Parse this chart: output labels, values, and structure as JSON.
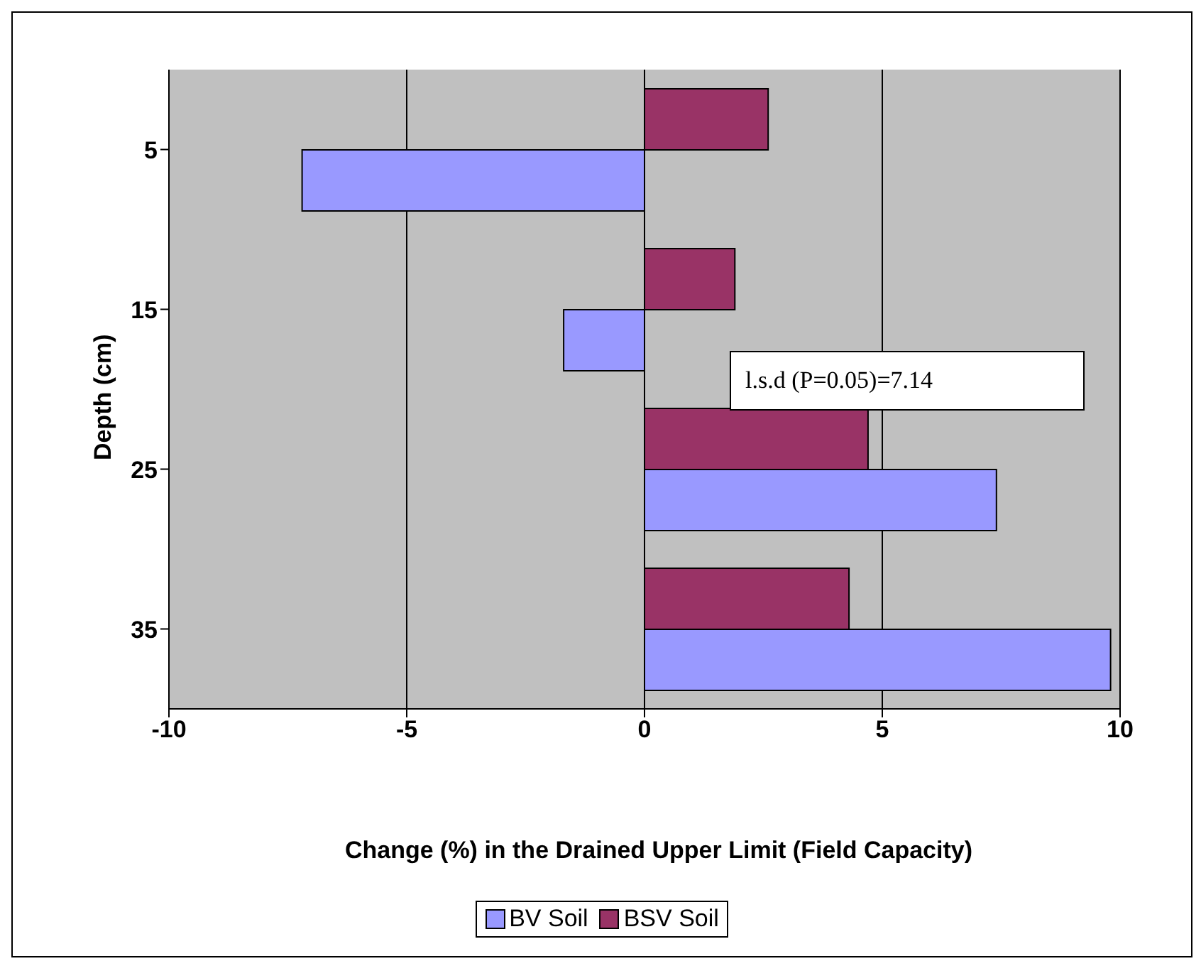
{
  "chart_data": {
    "type": "bar",
    "orientation": "horizontal",
    "xlabel": "Change (%) in the Drained Upper Limit (Field Capacity)",
    "ylabel": "Depth (cm)",
    "categories": [
      "5",
      "15",
      "25",
      "35"
    ],
    "series": [
      {
        "name": "BV Soil",
        "color": "#9999ff",
        "values": [
          -7.2,
          -1.7,
          7.4,
          9.8
        ]
      },
      {
        "name": "BSV Soil",
        "color": "#993366",
        "values": [
          2.6,
          1.9,
          4.7,
          4.3
        ]
      }
    ],
    "xlim": [
      -10,
      10
    ],
    "xticks": [
      -10,
      -5,
      0,
      5,
      10
    ],
    "grid": "x",
    "legend": "bottom",
    "annotations": [
      "l.s.d (P=0.05)=7.14"
    ]
  }
}
